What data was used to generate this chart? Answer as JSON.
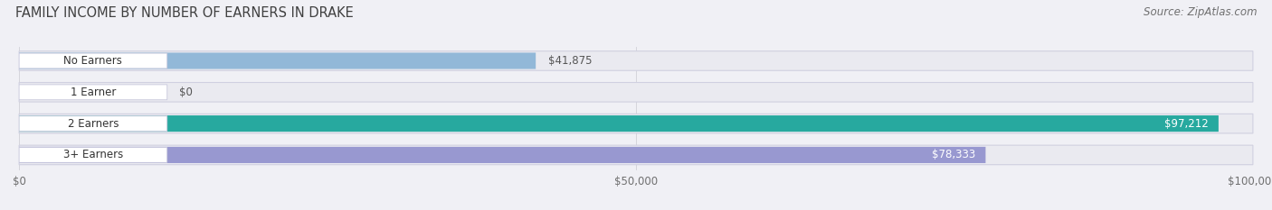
{
  "title": "FAMILY INCOME BY NUMBER OF EARNERS IN DRAKE",
  "source": "Source: ZipAtlas.com",
  "categories": [
    "No Earners",
    "1 Earner",
    "2 Earners",
    "3+ Earners"
  ],
  "values": [
    41875,
    0,
    97212,
    78333
  ],
  "bar_colors": [
    "#92b8d8",
    "#c4a0c8",
    "#27a99f",
    "#9898d0"
  ],
  "track_color": "#eaeaf0",
  "track_edge_color": "#d0d0e0",
  "value_labels": [
    "$41,875",
    "$0",
    "$97,212",
    "$78,333"
  ],
  "value_inside": [
    false,
    false,
    true,
    true
  ],
  "label_box_color": "white",
  "label_box_edge": "#c8c8dc",
  "xlim": [
    0,
    100000
  ],
  "xticks": [
    0,
    50000,
    100000
  ],
  "xticklabels": [
    "$0",
    "$50,000",
    "$100,000"
  ],
  "background_color": "#f0f0f5",
  "title_color": "#404040",
  "source_color": "#707070",
  "value_color_inside": "white",
  "value_color_outside": "#555555",
  "title_fontsize": 10.5,
  "source_fontsize": 8.5,
  "bar_fontsize": 8.5,
  "grid_color": "#d0d0d8"
}
